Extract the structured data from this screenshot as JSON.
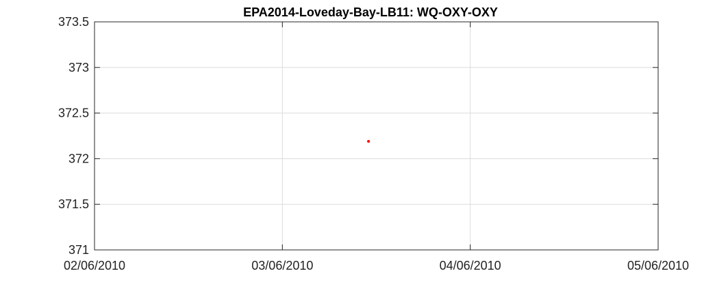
{
  "chart_data": {
    "type": "scatter",
    "title": "EPA2014-Loveday-Bay-LB11: WQ-OXY-OXY",
    "xlabel": "",
    "ylabel": "",
    "x_ticks": [
      "02/06/2010",
      "03/06/2010",
      "04/06/2010",
      "05/06/2010"
    ],
    "xlim": [
      "02/06/2010",
      "05/06/2010"
    ],
    "y_ticks": [
      "373.5",
      "373",
      "372.5",
      "372",
      "371.5",
      "371"
    ],
    "ylim": [
      371,
      373.5
    ],
    "grid": true,
    "series": [
      {
        "color": "#ff0000",
        "points": [
          {
            "x": "03/06/2010 11:00",
            "y": 372.19
          }
        ]
      }
    ]
  }
}
